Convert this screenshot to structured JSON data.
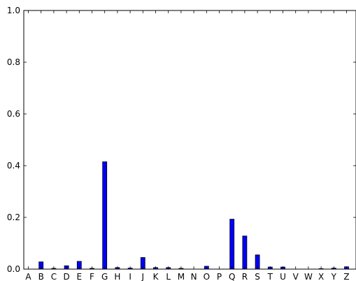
{
  "chart_data": {
    "type": "bar",
    "title": "",
    "xlabel": "",
    "ylabel": "",
    "categories": [
      "A",
      "B",
      "C",
      "D",
      "E",
      "F",
      "G",
      "H",
      "I",
      "J",
      "K",
      "L",
      "M",
      "N",
      "O",
      "P",
      "Q",
      "R",
      "S",
      "T",
      "U",
      "V",
      "W",
      "X",
      "Y",
      "Z"
    ],
    "values": [
      0,
      0.028,
      0.003,
      0.013,
      0.03,
      0.003,
      0.415,
      0.006,
      0.004,
      0.045,
      0.006,
      0.006,
      0.003,
      0,
      0.011,
      0,
      0.193,
      0.128,
      0.055,
      0.008,
      0.008,
      0,
      0,
      0.002,
      0.004,
      0.009
    ],
    "ylim": [
      0,
      1.0
    ],
    "yticks": [
      "0.0",
      "0.2",
      "0.4",
      "0.6",
      "0.8",
      "1.0"
    ],
    "ytick_values": [
      0,
      0.2,
      0.4,
      0.6,
      0.8,
      1.0
    ],
    "grid": false,
    "legend": "none",
    "bar_color": "#0000ff",
    "edge_color": "#000000"
  }
}
